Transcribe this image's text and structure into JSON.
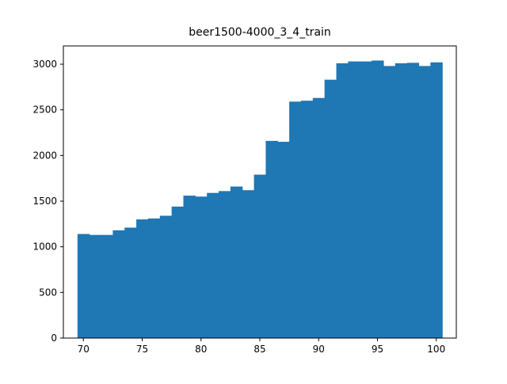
{
  "chart_data": {
    "type": "bar",
    "title": "beer1500-4000_3_4_train",
    "xlabel": "",
    "ylabel": "",
    "xlim": [
      68.3,
      101.7
    ],
    "ylim": [
      0,
      3200
    ],
    "bin_start": 69.5,
    "bin_width": 1.0,
    "values": [
      1140,
      1130,
      1130,
      1180,
      1210,
      1300,
      1310,
      1340,
      1440,
      1560,
      1550,
      1590,
      1610,
      1660,
      1620,
      1790,
      2160,
      2150,
      2590,
      2600,
      2630,
      2830,
      3010,
      3030,
      3030,
      3040,
      2980,
      3010,
      3015,
      2980,
      3020
    ],
    "x_ticks": [
      "70",
      "75",
      "80",
      "85",
      "90",
      "95",
      "100"
    ],
    "y_ticks": [
      "0",
      "500",
      "1000",
      "1500",
      "2000",
      "2500",
      "3000"
    ],
    "bar_color": "#1f77b4",
    "grid": false,
    "legend": "none"
  }
}
